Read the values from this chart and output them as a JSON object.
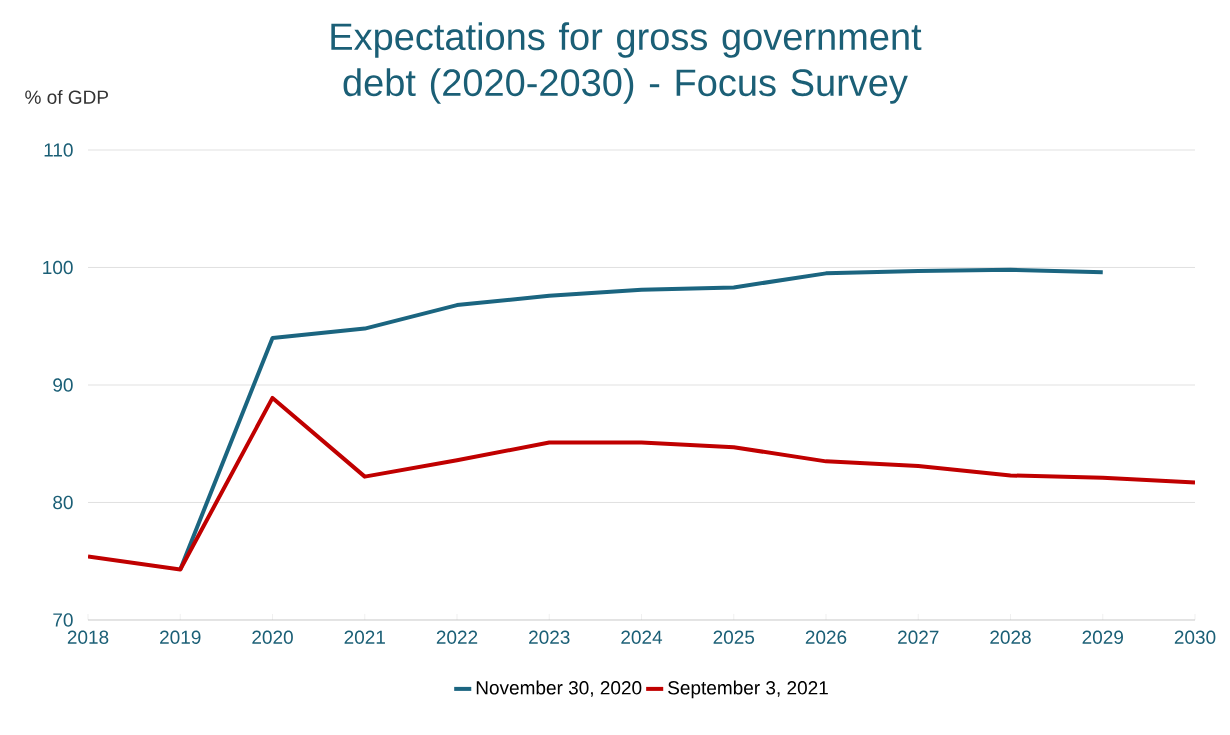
{
  "chart_data": {
    "type": "line",
    "title": "Expectations for gross government debt (2020-2030) - Focus Survey",
    "ylabel": "% of GDP",
    "x": [
      2018,
      2019,
      2020,
      2021,
      2022,
      2023,
      2024,
      2025,
      2026,
      2027,
      2028,
      2029,
      2030
    ],
    "series": [
      {
        "name": "November 30, 2020",
        "color": "#1b6580",
        "values": [
          null,
          74.3,
          94.0,
          94.8,
          96.8,
          97.6,
          98.1,
          98.3,
          99.5,
          99.7,
          99.8,
          99.6,
          null
        ]
      },
      {
        "name": "September 3, 2021",
        "color": "#c00000",
        "values": [
          75.4,
          74.3,
          88.9,
          82.2,
          83.6,
          85.1,
          85.1,
          84.7,
          83.5,
          83.1,
          82.3,
          82.1,
          81.7
        ]
      }
    ],
    "xlim": [
      2018,
      2030
    ],
    "xticks": [
      2018,
      2019,
      2020,
      2021,
      2022,
      2023,
      2024,
      2025,
      2026,
      2027,
      2028,
      2029,
      2030
    ],
    "ylim": [
      70,
      110
    ],
    "yticks": [
      70,
      80,
      90,
      100,
      110
    ],
    "grid": "y",
    "legend": "bottom",
    "marker": "none",
    "line_style": "solid"
  }
}
